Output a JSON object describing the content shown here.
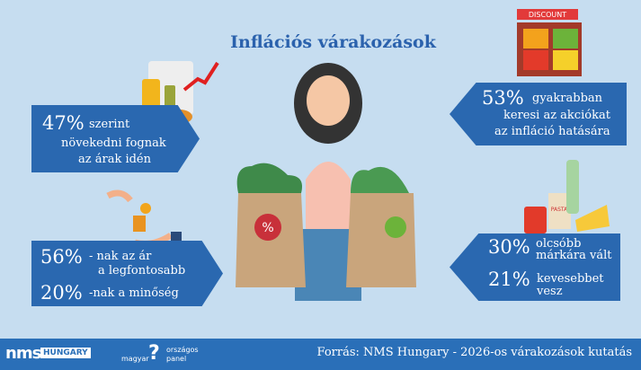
{
  "title": "Inflációs várakozások",
  "stats": {
    "prices": {
      "value": "47%",
      "text1": "szerint",
      "text2": "növekedni fognak",
      "text3": "az árak idén"
    },
    "promotions": {
      "value": "53%",
      "text1": "gyakrabban",
      "text2": "keresi az akciókat",
      "text3": "az infláció hatására"
    },
    "importance": {
      "value1": "56%",
      "text1a": "- nak az ár",
      "text1b": "a legfontosabb",
      "value2": "20%",
      "text2": "-nak a minőség"
    },
    "behaviour": {
      "value1": "30%",
      "text1a": "olcsóbb",
      "text1b": "márkára  vált",
      "value2": "21%",
      "text2a": "kevesebbet",
      "text2b": "vesz"
    }
  },
  "illustration": {
    "discount_sign": "DISCOUNT",
    "pasta_label": "PASTA"
  },
  "footer": {
    "logo1": "nms",
    "logo1_tag": "HUNGARY",
    "logo2_a": "magyar",
    "logo2_b": "országos",
    "logo2_c": "panel",
    "source": "Forrás: NMS Hungary - 2026-os várakozások kutatás"
  },
  "colors": {
    "background": "#c6ddf0",
    "box": "#2a68b0",
    "title": "#2b62ad",
    "footer": "#2a6fb8"
  }
}
